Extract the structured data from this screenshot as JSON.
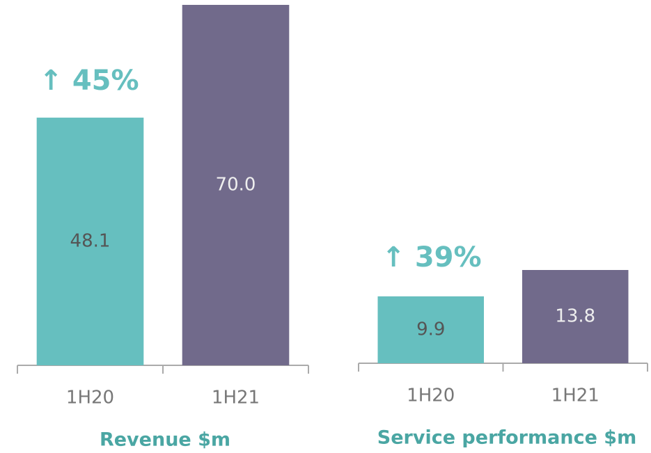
{
  "chart_data": [
    {
      "type": "bar",
      "title": "Revenue $m",
      "annotation": "↑ 45%",
      "categories": [
        "1H20",
        "1H21"
      ],
      "values": [
        48.1,
        70
      ],
      "value_labels": [
        "48.1",
        "70.0"
      ],
      "colors": [
        "#66bfbf",
        "#716a8b"
      ]
    },
    {
      "type": "bar",
      "title": "Service performance $m",
      "annotation": "↑ 39%",
      "categories": [
        "1H20",
        "1H21"
      ],
      "values": [
        9.9,
        13.8
      ],
      "value_labels": [
        "9.9",
        "13.8"
      ],
      "colors": [
        "#66bfbf",
        "#716a8b"
      ]
    }
  ]
}
